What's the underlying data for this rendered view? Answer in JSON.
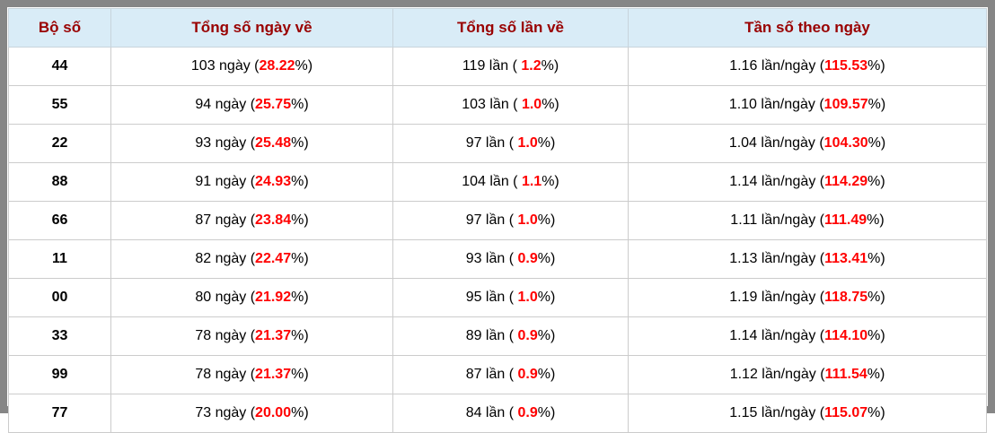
{
  "colors": {
    "frame_gray": "#868686",
    "header_bg": "#d9ecf7",
    "header_text": "#990000",
    "highlight_red": "#ff0000",
    "divider": "#cccccc"
  },
  "table": {
    "headers": [
      "Bộ số",
      "Tổng số ngày về",
      "Tổng số lần về",
      "Tần số theo ngày"
    ],
    "rows": [
      {
        "pair": "44",
        "days": {
          "pre": "103 ngày (",
          "red": "28.22",
          "post": "%)"
        },
        "times": {
          "pre": "119 lần ( ",
          "red": "1.2",
          "post": "%)"
        },
        "freq": {
          "pre": "1.16 lần/ngày (",
          "red": "115.53",
          "post": "%)"
        }
      },
      {
        "pair": "55",
        "days": {
          "pre": "94 ngày (",
          "red": "25.75",
          "post": "%)"
        },
        "times": {
          "pre": "103 lần ( ",
          "red": "1.0",
          "post": "%)"
        },
        "freq": {
          "pre": "1.10 lần/ngày (",
          "red": "109.57",
          "post": "%)"
        }
      },
      {
        "pair": "22",
        "days": {
          "pre": "93 ngày (",
          "red": "25.48",
          "post": "%)"
        },
        "times": {
          "pre": "97 lần ( ",
          "red": "1.0",
          "post": "%)"
        },
        "freq": {
          "pre": "1.04 lần/ngày (",
          "red": "104.30",
          "post": "%)"
        }
      },
      {
        "pair": "88",
        "days": {
          "pre": "91 ngày (",
          "red": "24.93",
          "post": "%)"
        },
        "times": {
          "pre": "104 lần ( ",
          "red": "1.1",
          "post": "%)"
        },
        "freq": {
          "pre": "1.14 lần/ngày (",
          "red": "114.29",
          "post": "%)"
        }
      },
      {
        "pair": "66",
        "days": {
          "pre": "87 ngày (",
          "red": "23.84",
          "post": "%)"
        },
        "times": {
          "pre": "97 lần ( ",
          "red": "1.0",
          "post": "%)"
        },
        "freq": {
          "pre": "1.11 lần/ngày (",
          "red": "111.49",
          "post": "%)"
        }
      },
      {
        "pair": "11",
        "days": {
          "pre": "82 ngày (",
          "red": "22.47",
          "post": "%)"
        },
        "times": {
          "pre": "93 lần ( ",
          "red": "0.9",
          "post": "%)"
        },
        "freq": {
          "pre": "1.13 lần/ngày (",
          "red": "113.41",
          "post": "%)"
        }
      },
      {
        "pair": "00",
        "days": {
          "pre": "80 ngày (",
          "red": "21.92",
          "post": "%)"
        },
        "times": {
          "pre": "95 lần ( ",
          "red": "1.0",
          "post": "%)"
        },
        "freq": {
          "pre": "1.19 lần/ngày (",
          "red": "118.75",
          "post": "%)"
        }
      },
      {
        "pair": "33",
        "days": {
          "pre": "78 ngày (",
          "red": "21.37",
          "post": "%)"
        },
        "times": {
          "pre": "89 lần ( ",
          "red": "0.9",
          "post": "%)"
        },
        "freq": {
          "pre": "1.14 lần/ngày (",
          "red": "114.10",
          "post": "%)"
        }
      },
      {
        "pair": "99",
        "days": {
          "pre": "78 ngày (",
          "red": "21.37",
          "post": "%)"
        },
        "times": {
          "pre": "87 lần ( ",
          "red": "0.9",
          "post": "%)"
        },
        "freq": {
          "pre": "1.12 lần/ngày (",
          "red": "111.54",
          "post": "%)"
        }
      },
      {
        "pair": "77",
        "days": {
          "pre": "73 ngày (",
          "red": "20.00",
          "post": "%)"
        },
        "times": {
          "pre": "84 lần ( ",
          "red": "0.9",
          "post": "%)"
        },
        "freq": {
          "pre": "1.15 lần/ngày (",
          "red": "115.07",
          "post": "%)"
        }
      }
    ]
  }
}
